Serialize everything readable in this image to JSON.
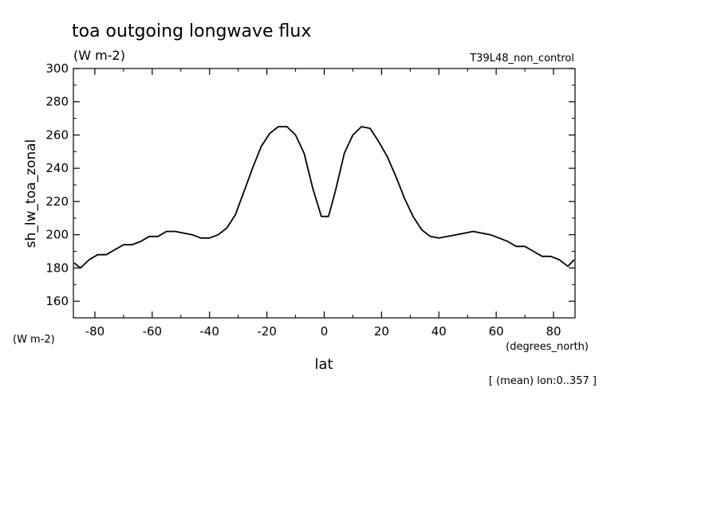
{
  "chart_data": {
    "type": "line",
    "title": "toa outgoing longwave flux",
    "subtitle": "(W m-2)",
    "run_label": "T39L48_non_control",
    "ylabel": "sh_lw_toa_zonal",
    "yunits": "(W m-2)",
    "xlabel": "lat",
    "xunits": "(degrees_north)",
    "footnote": "[ (mean) lon:0..357 ]",
    "xlim": [
      -87.5,
      87.5
    ],
    "ylim": [
      150,
      300
    ],
    "xticks": [
      -80,
      -60,
      -40,
      -20,
      0,
      20,
      40,
      60,
      80
    ],
    "yticks": [
      160,
      180,
      200,
      220,
      240,
      260,
      280,
      300
    ],
    "xtick_labels": [
      "-80",
      "-60",
      "-40",
      "-20",
      "0",
      "20",
      "40",
      "60",
      "80"
    ],
    "ytick_labels": [
      "160",
      "180",
      "200",
      "220",
      "240",
      "260",
      "280",
      "300"
    ],
    "grid": false,
    "series": [
      {
        "x": [
          -87.2,
          -85,
          -82,
          -79,
          -76,
          -73,
          -70,
          -67,
          -64,
          -61,
          -58,
          -55,
          -52,
          -49,
          -46,
          -43,
          -40,
          -37,
          -34,
          -31,
          -28,
          -25,
          -22,
          -19,
          -16,
          -13,
          -10,
          -7,
          -4,
          -1,
          1.5,
          4,
          7,
          10,
          13,
          16,
          19,
          22,
          25,
          28,
          31,
          34,
          37,
          40,
          43,
          46,
          49,
          52,
          55,
          58,
          61,
          64,
          67,
          70,
          73,
          76,
          79,
          82,
          85,
          87.2
        ],
        "y": [
          183,
          180,
          185,
          188,
          188,
          191,
          194,
          194,
          196,
          199,
          199,
          202,
          202,
          201,
          200,
          198,
          198,
          200,
          204,
          212,
          226,
          240,
          253,
          261,
          265,
          265,
          260,
          249,
          228,
          211,
          211,
          227,
          249,
          260,
          265,
          264,
          256,
          247,
          235,
          222,
          211,
          203,
          199,
          198,
          199,
          200,
          201,
          202,
          201,
          200,
          198,
          196,
          193,
          193,
          190,
          187,
          187,
          185,
          181,
          185
        ]
      }
    ]
  }
}
